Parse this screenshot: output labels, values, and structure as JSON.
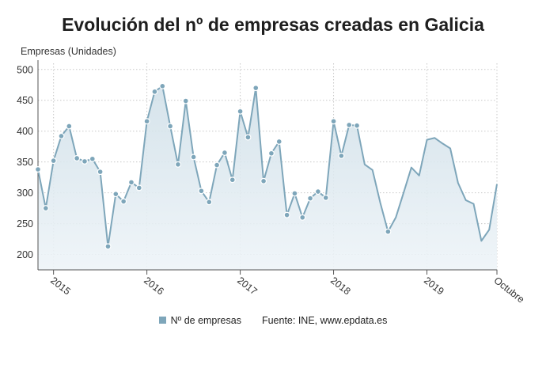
{
  "chart_data": {
    "type": "area",
    "title": "Evolución del nº de empresas creadas en Galicia",
    "ylabel": "Empresas (Unidades)",
    "xlabel": "",
    "ylim": [
      175,
      510
    ],
    "yticks": [
      200,
      250,
      300,
      350,
      400,
      450,
      500
    ],
    "x_start": "2014-11",
    "x_end": "2019-10",
    "xtick_labels": [
      "2015",
      "2016",
      "2017",
      "2018",
      "2019",
      "Octubre"
    ],
    "grid": true,
    "legend_position": "bottom",
    "series": [
      {
        "name": "Nº de empresas",
        "color": "#7ea6ba",
        "values": [
          338,
          275,
          352,
          392,
          408,
          356,
          351,
          355,
          334,
          213,
          298,
          286,
          317,
          308,
          416,
          464,
          473,
          408,
          346,
          449,
          358,
          303,
          285,
          345,
          365,
          321,
          432,
          390,
          470,
          319,
          364,
          383,
          264,
          299,
          260,
          291,
          302,
          292,
          416,
          360,
          410,
          409,
          346,
          337,
          284,
          237,
          260,
          300,
          341,
          328,
          386,
          389,
          380,
          372,
          316,
          288,
          282,
          222,
          240,
          314
        ],
        "markers": [
          true,
          true,
          true,
          true,
          true,
          true,
          true,
          true,
          true,
          true,
          true,
          true,
          true,
          true,
          true,
          true,
          true,
          true,
          true,
          true,
          true,
          true,
          true,
          true,
          true,
          true,
          true,
          true,
          true,
          true,
          true,
          true,
          true,
          true,
          true,
          true,
          true,
          true,
          true,
          true,
          true,
          true,
          false,
          false,
          false,
          true,
          false,
          false,
          false,
          false,
          false,
          false,
          false,
          false,
          false,
          false,
          false,
          false,
          false,
          false
        ]
      }
    ]
  },
  "legend": {
    "series_label": "Nº de empresas",
    "source": "Fuente: INE, www.epdata.es"
  }
}
